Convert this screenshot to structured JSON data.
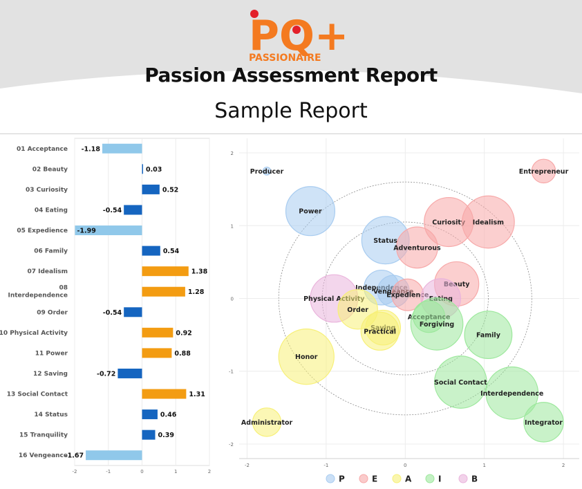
{
  "header": {
    "logo_text": "PQ+",
    "logo_subtext": "PASSIONAIRE",
    "title": "Passion Assessment Report",
    "subtitle": "Sample Report"
  },
  "colors": {
    "header_band": "#e2e2e2",
    "logo_orange": "#f47a20",
    "logo_red": "#e3202a",
    "bar_positive": "#f39c12",
    "bar_negative": "#1565c0",
    "bar_light": "#90c8ea",
    "P": "#a8ccf0",
    "E": "#f7a8a8",
    "A": "#f7f078",
    "I": "#9ce89c",
    "B": "#eab4dc"
  },
  "chart_data": [
    {
      "type": "bar",
      "orientation": "horizontal",
      "categories": [
        "01 Acceptance",
        "02 Beauty",
        "03 Curiosity",
        "04 Eating",
        "05 Expedience",
        "06 Family",
        "07 Idealism",
        "08 Interdependence",
        "09 Order",
        "10 Physical Activity",
        "11 Power",
        "12 Saving",
        "13 Social Contact",
        "14 Status",
        "15 Tranquility",
        "16 Vengeance"
      ],
      "values": [
        -1.18,
        0.03,
        0.52,
        -0.54,
        -1.99,
        0.54,
        1.38,
        1.28,
        -0.54,
        0.92,
        0.88,
        -0.72,
        1.31,
        0.46,
        0.39,
        -1.67
      ],
      "value_labels": [
        "-1.18",
        "0.03",
        "0.52",
        "-0.54",
        "-1.99",
        "0.54",
        "1.38",
        "1.28",
        "-0.54",
        "0.92",
        "0.88",
        "-0.72",
        "1.31",
        "0.46",
        "0.39",
        "-1.67"
      ],
      "xlim": [
        -2,
        2
      ],
      "xticks": [
        "-2",
        "-1",
        "0",
        "1",
        "2"
      ],
      "grid": true
    },
    {
      "type": "scatter",
      "subtype": "bubble",
      "xlim": [
        -2.1,
        2.2
      ],
      "ylim": [
        -2.2,
        2.2
      ],
      "xticks": [
        "-2",
        "-1",
        "0",
        "1",
        "2"
      ],
      "yticks": [
        "2",
        "1",
        "0",
        "-1",
        "-2"
      ],
      "reference_circles": [
        {
          "r": 1.6
        },
        {
          "r": 1.05
        }
      ],
      "legend": [
        "P",
        "E",
        "A",
        "I",
        "B"
      ],
      "legend_position": "bottom",
      "points": [
        {
          "label": "Producer",
          "x": -1.75,
          "y": 1.75,
          "group": "P",
          "size": 0.05
        },
        {
          "label": "Entrepreneur",
          "x": 1.75,
          "y": 1.75,
          "group": "E",
          "size": 0.15
        },
        {
          "label": "Power",
          "x": -1.2,
          "y": 1.2,
          "group": "P",
          "size": 0.31
        },
        {
          "label": "Curiosity",
          "x": 0.55,
          "y": 1.05,
          "group": "E",
          "size": 0.31
        },
        {
          "label": "Idealism",
          "x": 1.05,
          "y": 1.05,
          "group": "E",
          "size": 0.33
        },
        {
          "label": "Status",
          "x": -0.25,
          "y": 0.8,
          "group": "P",
          "size": 0.3
        },
        {
          "label": "Adventurous",
          "x": 0.15,
          "y": 0.7,
          "group": "E",
          "size": 0.26
        },
        {
          "label": "Beauty",
          "x": 0.65,
          "y": 0.2,
          "group": "E",
          "size": 0.28
        },
        {
          "label": "Independence",
          "x": -0.3,
          "y": 0.15,
          "group": "P",
          "size": 0.22
        },
        {
          "label": "Vengeance",
          "x": -0.15,
          "y": 0.1,
          "group": "P",
          "size": 0.2
        },
        {
          "label": "Expedience",
          "x": 0.03,
          "y": 0.05,
          "group": "E",
          "size": 0.2
        },
        {
          "label": "Eating",
          "x": 0.45,
          "y": 0,
          "group": "B",
          "size": 0.25
        },
        {
          "label": "Physical Activity",
          "x": -0.9,
          "y": 0,
          "group": "B",
          "size": 0.3
        },
        {
          "label": "Order",
          "x": -0.6,
          "y": -0.15,
          "group": "A",
          "size": 0.25
        },
        {
          "label": "Acceptance",
          "x": 0.3,
          "y": -0.25,
          "group": "I",
          "size": 0.2
        },
        {
          "label": "Forgiving",
          "x": 0.4,
          "y": -0.35,
          "group": "I",
          "size": 0.33
        },
        {
          "label": "Saving",
          "x": -0.28,
          "y": -0.4,
          "group": "A",
          "size": 0.22
        },
        {
          "label": "Practical",
          "x": -0.32,
          "y": -0.45,
          "group": "A",
          "size": 0.24
        },
        {
          "label": "Family",
          "x": 1.05,
          "y": -0.5,
          "group": "I",
          "size": 0.3
        },
        {
          "label": "Honor",
          "x": -1.25,
          "y": -0.8,
          "group": "A",
          "size": 0.35
        },
        {
          "label": "Social Contact",
          "x": 0.7,
          "y": -1.15,
          "group": "I",
          "size": 0.33
        },
        {
          "label": "Interdependence",
          "x": 1.35,
          "y": -1.3,
          "group": "I",
          "size": 0.33
        },
        {
          "label": "Administrator",
          "x": -1.75,
          "y": -1.7,
          "group": "A",
          "size": 0.18
        },
        {
          "label": "Integrator",
          "x": 1.75,
          "y": -1.7,
          "group": "I",
          "size": 0.25
        }
      ]
    }
  ]
}
